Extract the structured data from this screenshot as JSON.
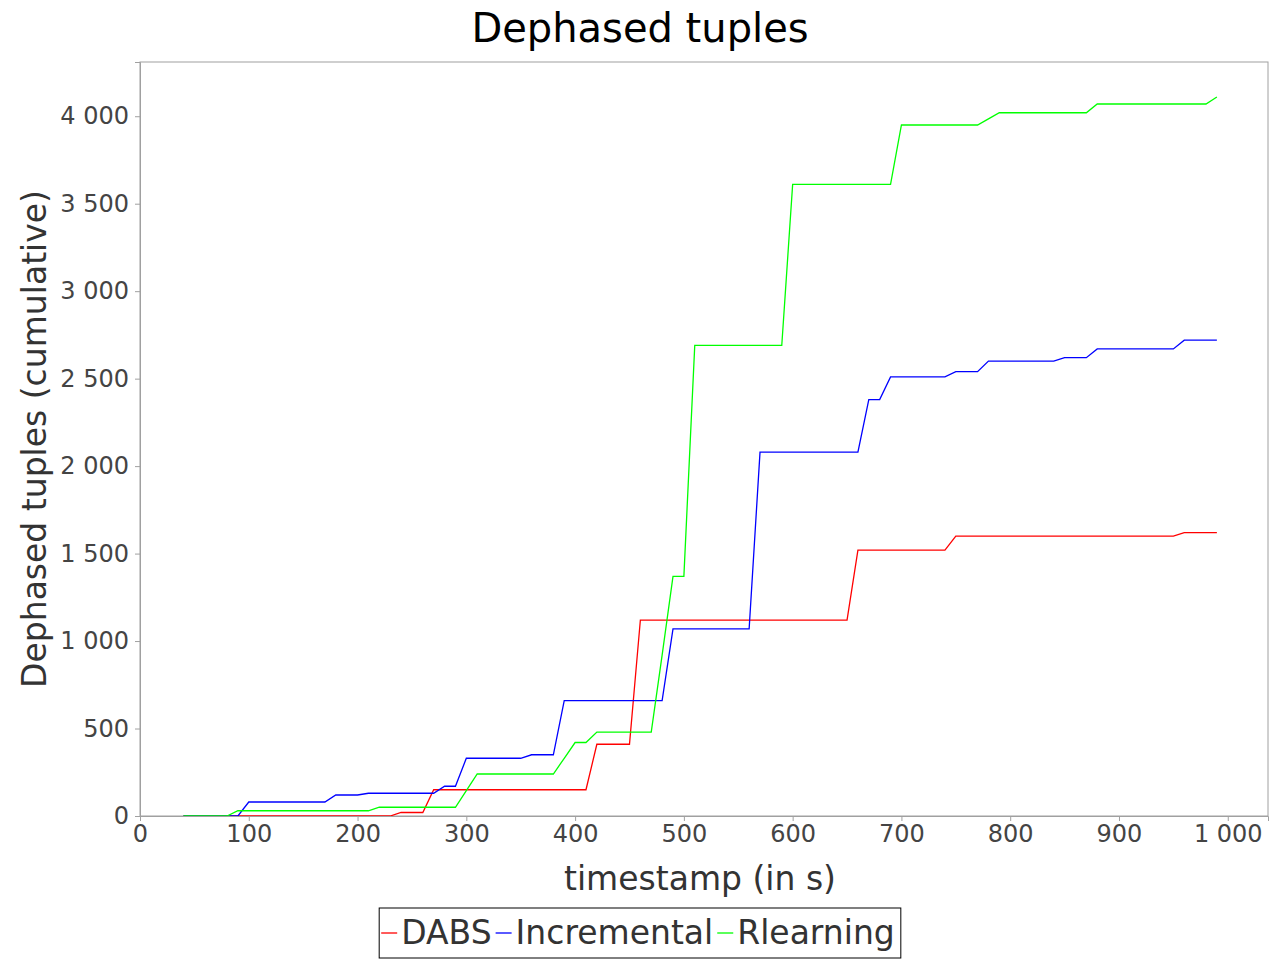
{
  "chart_data": {
    "type": "line",
    "title": "Dephased tuples",
    "x_label": "timestamp (in s)",
    "y_label": "Dephased tuples (cumulative)",
    "x": [
      40,
      80,
      90,
      100,
      170,
      180,
      200,
      210,
      220,
      230,
      240,
      260,
      270,
      280,
      290,
      300,
      310,
      350,
      360,
      380,
      390,
      400,
      410,
      420,
      450,
      460,
      470,
      480,
      490,
      500,
      510,
      560,
      570,
      590,
      600,
      650,
      660,
      670,
      680,
      690,
      700,
      740,
      750,
      770,
      780,
      790,
      840,
      850,
      870,
      880,
      950,
      960,
      980,
      990
    ],
    "series": [
      {
        "name": "DABS",
        "color": "#ff0000",
        "values": [
          0,
          0,
          0,
          0,
          0,
          0,
          0,
          0,
          0,
          0,
          20,
          20,
          150,
          150,
          150,
          150,
          150,
          150,
          150,
          150,
          150,
          150,
          150,
          410,
          410,
          1120,
          1120,
          1120,
          1120,
          1120,
          1120,
          1120,
          1120,
          1120,
          1120,
          1120,
          1520,
          1520,
          1520,
          1520,
          1520,
          1520,
          1600,
          1600,
          1600,
          1600,
          1600,
          1600,
          1600,
          1600,
          1600,
          1620,
          1620,
          1620
        ]
      },
      {
        "name": "Incremental",
        "color": "#0000ff",
        "values": [
          0,
          0,
          0,
          80,
          80,
          120,
          120,
          130,
          130,
          130,
          130,
          130,
          130,
          170,
          170,
          330,
          330,
          330,
          350,
          350,
          660,
          660,
          660,
          660,
          660,
          660,
          660,
          660,
          1070,
          1070,
          1070,
          1070,
          2080,
          2080,
          2080,
          2080,
          2080,
          2380,
          2380,
          2510,
          2510,
          2510,
          2540,
          2540,
          2600,
          2600,
          2600,
          2620,
          2620,
          2670,
          2670,
          2720,
          2720,
          2720
        ]
      },
      {
        "name": "Rlearning",
        "color": "#00ff00",
        "values": [
          0,
          0,
          30,
          30,
          30,
          30,
          30,
          30,
          50,
          50,
          50,
          50,
          50,
          50,
          50,
          145,
          240,
          240,
          240,
          240,
          330,
          420,
          420,
          480,
          480,
          480,
          480,
          920,
          1370,
          1370,
          2690,
          2690,
          2690,
          2690,
          3610,
          3610,
          3610,
          3610,
          3610,
          3610,
          3950,
          3950,
          3950,
          3950,
          3985,
          4020,
          4020,
          4020,
          4020,
          4070,
          4070,
          4070,
          4070,
          4110
        ]
      }
    ],
    "xlim": [
      0,
      1037
    ],
    "xticks": [
      0,
      100,
      200,
      300,
      400,
      500,
      600,
      700,
      800,
      900,
      {
        "value": 1000,
        "label": "1 000"
      }
    ],
    "ylim": [
      0,
      4310
    ],
    "yticks": [
      0,
      500,
      {
        "value": 1000,
        "label": "1 000"
      },
      {
        "value": 1500,
        "label": "1 500"
      },
      {
        "value": 2000,
        "label": "2 000"
      },
      {
        "value": 2500,
        "label": "2 500"
      },
      {
        "value": 3000,
        "label": "3 000"
      },
      {
        "value": 3500,
        "label": "3 500"
      },
      {
        "value": 4000,
        "label": "4 000"
      }
    ],
    "grid": false,
    "legend": "bottom"
  }
}
